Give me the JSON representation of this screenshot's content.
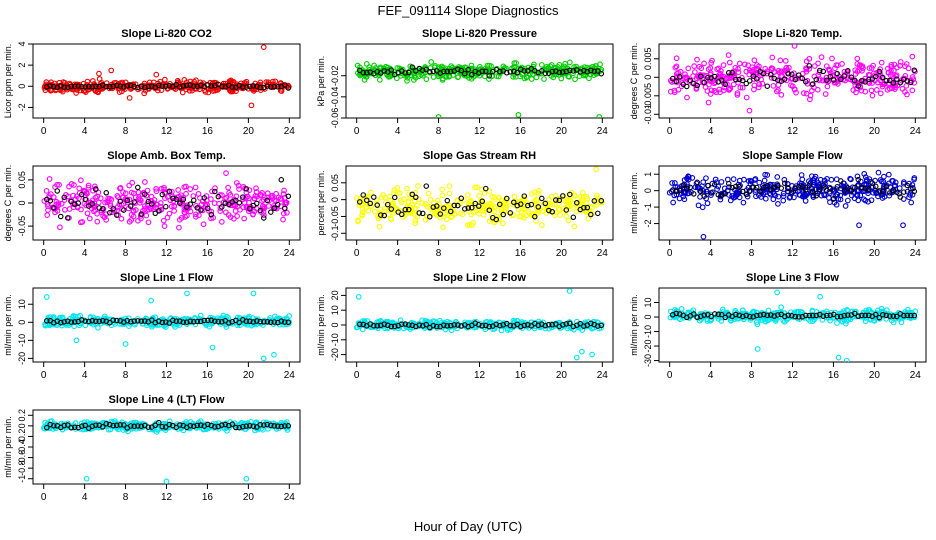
{
  "figure": {
    "title": "FEF_091114  Slope Diagnostics",
    "xlabel": "Hour of Day (UTC)"
  },
  "colors": {
    "co2": "#ee0000",
    "pressure": "#00cc00",
    "magenta": "#ff00ff",
    "yellow": "#ffff00",
    "blue": "#0000cc",
    "cyan": "#00e5ee",
    "mean": "#000000"
  },
  "chart_data": [
    {
      "type": "scatter",
      "title": "Slope Li-820 CO2",
      "ylabel": "Licor ppm per min.",
      "xlim": [
        0,
        24
      ],
      "ylim": [
        -3,
        4
      ],
      "xticks": [
        0,
        4,
        8,
        12,
        16,
        20,
        24
      ],
      "yticks": [
        -2,
        0,
        2,
        4
      ],
      "series": [
        {
          "color_key": "co2",
          "spread": 0.35,
          "outliers": [
            [
              21.5,
              3.7
            ],
            [
              5.4,
              1.2
            ],
            [
              6.6,
              1.5
            ],
            [
              11,
              1.1
            ],
            [
              8.4,
              -1.1
            ],
            [
              20.3,
              -1.8
            ]
          ]
        },
        {
          "color_key": "mean",
          "level": 0,
          "amp": 0.1
        }
      ]
    },
    {
      "type": "scatter",
      "title": "Slope Li-820 Pressure",
      "ylabel": "kPa per min.",
      "xlim": [
        0,
        24
      ],
      "ylim": [
        -0.06,
        0.01
      ],
      "xticks": [
        0,
        4,
        8,
        12,
        16,
        20,
        24
      ],
      "yticks": [
        -0.06,
        -0.04,
        -0.02
      ],
      "series": [
        {
          "color_key": "pressure",
          "spread": 0.005,
          "outliers": [
            [
              8,
              -0.059
            ],
            [
              15.8,
              -0.057
            ],
            [
              23.7,
              -0.059
            ]
          ]
        },
        {
          "color_key": "mean",
          "level": -0.016,
          "amp": 0.002
        }
      ]
    },
    {
      "type": "scatter",
      "title": "Slope Li-820 Temp.",
      "ylabel": "degrees C per min.",
      "xlim": [
        0,
        24
      ],
      "ylim": [
        -0.011,
        0.009
      ],
      "xticks": [
        0,
        4,
        8,
        12,
        16,
        20,
        24
      ],
      "yticks": [
        -0.01,
        -0.005,
        0,
        0.005
      ],
      "series": [
        {
          "color_key": "magenta",
          "spread": 0.0035,
          "outliers": [
            [
              12.2,
              0.0085
            ],
            [
              7.8,
              -0.009
            ]
          ]
        },
        {
          "color_key": "mean",
          "level": 0,
          "amp": 0.0015
        }
      ]
    },
    {
      "type": "scatter",
      "title": "Slope Amb. Box Temp.",
      "ylabel": "degrees C per min.",
      "xlim": [
        0,
        24
      ],
      "ylim": [
        -0.08,
        0.08
      ],
      "xticks": [
        0,
        4,
        8,
        12,
        16,
        20,
        24
      ],
      "yticks": [
        -0.05,
        0,
        0.05
      ],
      "series": [
        {
          "color_key": "magenta",
          "spread": 0.03,
          "outliers": []
        },
        {
          "color_key": "mean",
          "level": 0,
          "amp": 0.025
        }
      ]
    },
    {
      "type": "scatter",
      "title": "Slope Gas Stream RH",
      "ylabel": "percent per min.",
      "xlim": [
        0,
        24
      ],
      "ylim": [
        -0.12,
        0.1
      ],
      "xticks": [
        0,
        4,
        8,
        12,
        16,
        20,
        24
      ],
      "yticks": [
        -0.1,
        -0.05,
        0,
        0.05
      ],
      "series": [
        {
          "color_key": "yellow",
          "spread": 0.035,
          "outliers": [
            [
              23.4,
              0.09
            ]
          ]
        },
        {
          "color_key": "mean",
          "level": -0.02,
          "amp": 0.03
        }
      ]
    },
    {
      "type": "scatter",
      "title": "Slope Sample Flow",
      "ylabel": "ml/min per min.",
      "xlim": [
        0,
        24
      ],
      "ylim": [
        -3,
        1.5
      ],
      "xticks": [
        0,
        4,
        8,
        12,
        16,
        20,
        24
      ],
      "yticks": [
        -2,
        -1,
        0,
        1
      ],
      "series": [
        {
          "color_key": "blue",
          "spread": 0.6,
          "outliers": [
            [
              3.3,
              -2.8
            ],
            [
              18.5,
              -2.1
            ],
            [
              22.8,
              -2.1
            ],
            [
              20.4,
              1.1
            ]
          ]
        },
        {
          "color_key": "mean",
          "level": 0.1,
          "amp": 0.3
        }
      ]
    },
    {
      "type": "scatter",
      "title": "Slope Line 1 Flow",
      "ylabel": "ml/min per min.",
      "xlim": [
        0,
        24
      ],
      "ylim": [
        -22,
        19
      ],
      "xticks": [
        0,
        4,
        8,
        12,
        16,
        20,
        24
      ],
      "yticks": [
        -20,
        -10,
        0,
        10
      ],
      "series": [
        {
          "color_key": "cyan",
          "spread": 2,
          "outliers": [
            [
              0.3,
              14
            ],
            [
              10.5,
              12
            ],
            [
              14,
              16
            ],
            [
              20.5,
              16
            ],
            [
              8,
              -12
            ],
            [
              16.5,
              -14
            ],
            [
              21.5,
              -20
            ],
            [
              22.5,
              -18
            ],
            [
              3.2,
              -10
            ]
          ]
        },
        {
          "color_key": "mean",
          "level": 0.5,
          "amp": 0.6
        }
      ]
    },
    {
      "type": "scatter",
      "title": "Slope Line 2 Flow",
      "ylabel": "ml/min per min.",
      "xlim": [
        0,
        24
      ],
      "ylim": [
        -25,
        25
      ],
      "xticks": [
        0,
        4,
        8,
        12,
        16,
        20,
        24
      ],
      "yticks": [
        -20,
        -10,
        0,
        10,
        20
      ],
      "series": [
        {
          "color_key": "cyan",
          "spread": 2,
          "outliers": [
            [
              0.2,
              19
            ],
            [
              20.8,
              23
            ],
            [
              22,
              -18
            ],
            [
              21.5,
              -22
            ],
            [
              23,
              -20
            ]
          ]
        },
        {
          "color_key": "mean",
          "level": 0,
          "amp": 0.8
        }
      ]
    },
    {
      "type": "scatter",
      "title": "Slope Line 3 Flow",
      "ylabel": "ml/min per min.",
      "xlim": [
        0,
        24
      ],
      "ylim": [
        -31,
        20
      ],
      "xticks": [
        0,
        4,
        8,
        12,
        16,
        20,
        24
      ],
      "yticks": [
        -30,
        -20,
        -10,
        0,
        10
      ],
      "series": [
        {
          "color_key": "cyan",
          "spread": 3,
          "outliers": [
            [
              10.5,
              17
            ],
            [
              14.7,
              14
            ],
            [
              8.6,
              -22
            ],
            [
              16.5,
              -28
            ],
            [
              17.3,
              -30
            ]
          ]
        },
        {
          "color_key": "mean",
          "level": 1,
          "amp": 1
        }
      ]
    },
    {
      "type": "scatter",
      "title": "Slope Line 4 (LT) Flow",
      "ylabel": "ml/min per min.",
      "xlim": [
        0,
        24
      ],
      "ylim": [
        -1.1,
        0.3
      ],
      "xticks": [
        0,
        4,
        8,
        12,
        16,
        20,
        24
      ],
      "yticks": [
        -1,
        -0.8,
        -0.6,
        -0.4,
        -0.2,
        0,
        0.2
      ],
      "series": [
        {
          "color_key": "cyan",
          "spread": 0.06,
          "outliers": [
            [
              4.2,
              -1.0
            ],
            [
              12,
              -1.05
            ],
            [
              19.8,
              -1.0
            ]
          ]
        },
        {
          "color_key": "mean",
          "level": 0,
          "amp": 0.03
        }
      ]
    }
  ]
}
